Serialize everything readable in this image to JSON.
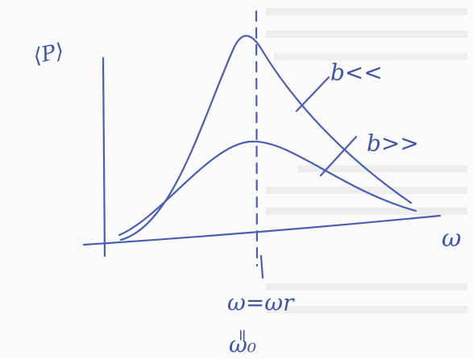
{
  "diagram": {
    "y_axis_label": "⟨P⟩",
    "x_axis_label": "ω",
    "curves": [
      {
        "label": "b<<"
      },
      {
        "label": "b>>"
      }
    ],
    "marker": {
      "label": "ω=ωr",
      "equals": "=",
      "alt_label": "ω₀"
    }
  }
}
